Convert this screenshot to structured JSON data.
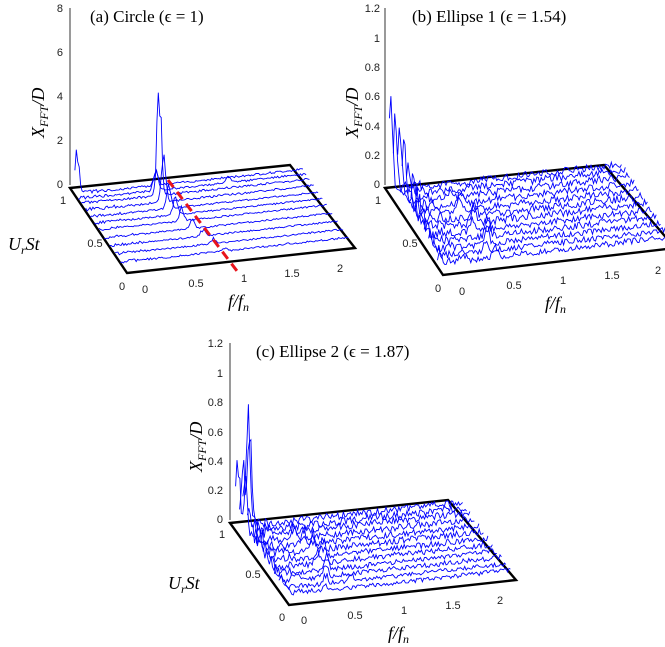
{
  "chart_data": [
    {
      "type": "line",
      "title": "(a) Circle (ϵ = 1)",
      "ylabel": "X_FFT/D",
      "xlabel": "f/f_n",
      "zlabel": "U_rSt",
      "z_ticks": [
        "0",
        "2",
        "4",
        "6",
        "8"
      ],
      "z_lim": [
        0,
        8
      ],
      "x_ticks": [
        "0",
        "0.5",
        "1",
        "1.5",
        "2"
      ],
      "x_lim": [
        0,
        2.2
      ],
      "y_ticks": [
        "0",
        "0.5",
        "1"
      ],
      "y_lim": [
        0,
        1.05
      ],
      "series_color": "#0000ff",
      "annotation_color": "#e8141c",
      "annotation": "dashed line marking f = U_rSt",
      "traces": [
        {
          "y": 0.12,
          "peaks": [
            [
              1.0,
              0.2
            ],
            [
              1.6,
              0.05
            ]
          ],
          "noise": 0.08
        },
        {
          "y": 0.22,
          "peaks": [
            [
              0.95,
              0.25
            ]
          ],
          "noise": 0.08
        },
        {
          "y": 0.32,
          "peaks": [
            [
              0.9,
              0.35
            ]
          ],
          "noise": 0.08
        },
        {
          "y": 0.42,
          "peaks": [
            [
              0.85,
              0.5
            ]
          ],
          "noise": 0.08
        },
        {
          "y": 0.52,
          "peaks": [
            [
              0.8,
              0.7
            ]
          ],
          "noise": 0.08
        },
        {
          "y": 0.6,
          "peaks": [
            [
              0.78,
              1.0
            ]
          ],
          "noise": 0.08
        },
        {
          "y": 0.68,
          "peaks": [
            [
              0.76,
              1.5
            ]
          ],
          "noise": 0.08
        },
        {
          "y": 0.76,
          "peaks": [
            [
              0.75,
              2.5
            ]
          ],
          "noise": 0.1
        },
        {
          "y": 0.84,
          "peaks": [
            [
              0.75,
              5.7
            ]
          ],
          "noise": 0.1
        },
        {
          "y": 0.9,
          "peaks": [
            [
              0.75,
              1.2
            ],
            [
              1.45,
              0.3
            ]
          ],
          "noise": 0.1
        },
        {
          "y": 0.96,
          "peaks": [
            [
              0.02,
              2.2
            ],
            [
              0.78,
              0.8
            ]
          ],
          "noise": 0.1
        }
      ]
    },
    {
      "type": "line",
      "title": "(b) Ellipse 1 (ϵ = 1.54)",
      "ylabel": "X_FFT/D",
      "xlabel": "f/f_n",
      "zlabel": "U_rSt",
      "z_ticks": [
        "0",
        "0.2",
        "0.4",
        "0.6",
        "0.8",
        "1",
        "1.2"
      ],
      "z_lim": [
        0,
        1.2
      ],
      "x_ticks": [
        "0",
        "0.5",
        "1",
        "1.5",
        "2"
      ],
      "x_lim": [
        0,
        2.2
      ],
      "y_ticks": [
        "0.5",
        "1"
      ],
      "y_lim": [
        0,
        1.05
      ],
      "series_color": "#0000ff",
      "traces": [
        {
          "y": 0.1,
          "peaks": [
            [
              0.02,
              0.1
            ],
            [
              0.55,
              0.1
            ]
          ],
          "noise": 0.04
        },
        {
          "y": 0.18,
          "peaks": [
            [
              0.02,
              0.12
            ],
            [
              0.5,
              0.08
            ]
          ],
          "noise": 0.04
        },
        {
          "y": 0.26,
          "peaks": [
            [
              0.02,
              0.15
            ],
            [
              0.55,
              0.12
            ]
          ],
          "noise": 0.04
        },
        {
          "y": 0.34,
          "peaks": [
            [
              0.02,
              0.2
            ],
            [
              0.6,
              0.15
            ]
          ],
          "noise": 0.045
        },
        {
          "y": 0.42,
          "peaks": [
            [
              0.02,
              0.3
            ],
            [
              0.5,
              0.1
            ]
          ],
          "noise": 0.045
        },
        {
          "y": 0.5,
          "peaks": [
            [
              0.02,
              0.35
            ],
            [
              0.55,
              0.12
            ]
          ],
          "noise": 0.05
        },
        {
          "y": 0.58,
          "peaks": [
            [
              0.02,
              0.4
            ],
            [
              0.6,
              0.12
            ]
          ],
          "noise": 0.05
        },
        {
          "y": 0.66,
          "peaks": [
            [
              0.02,
              0.45
            ],
            [
              0.5,
              0.1
            ]
          ],
          "noise": 0.05
        },
        {
          "y": 0.74,
          "peaks": [
            [
              0.02,
              0.5
            ],
            [
              0.55,
              0.1
            ]
          ],
          "noise": 0.05
        },
        {
          "y": 0.82,
          "peaks": [
            [
              0.02,
              0.55
            ],
            [
              0.5,
              0.08
            ]
          ],
          "noise": 0.05
        },
        {
          "y": 0.9,
          "peaks": [
            [
              0.02,
              0.6
            ]
          ],
          "noise": 0.05
        },
        {
          "y": 0.97,
          "peaks": [
            [
              0.01,
              0.72
            ]
          ],
          "noise": 0.05
        }
      ]
    },
    {
      "type": "line",
      "title": "(c) Ellipse 2 (ϵ = 1.87)",
      "ylabel": "X_FFT/D",
      "xlabel": "f/f_n",
      "zlabel": "U_rSt",
      "z_ticks": [
        "0",
        "0.2",
        "0.4",
        "0.6",
        "0.8",
        "1",
        "1.2"
      ],
      "z_lim": [
        0,
        1.2
      ],
      "x_ticks": [
        "0",
        "0.5",
        "1",
        "1.5",
        "2"
      ],
      "x_lim": [
        0,
        2.2
      ],
      "y_ticks": [
        "0",
        "0.5",
        "1"
      ],
      "y_lim": [
        0,
        1.05
      ],
      "series_color": "#0000ff",
      "traces": [
        {
          "y": 0.1,
          "peaks": [
            [
              0.02,
              0.08
            ],
            [
              0.4,
              0.06
            ]
          ],
          "noise": 0.03
        },
        {
          "y": 0.18,
          "peaks": [
            [
              0.02,
              0.1
            ],
            [
              0.45,
              0.08
            ],
            [
              0.7,
              0.06
            ]
          ],
          "noise": 0.03
        },
        {
          "y": 0.26,
          "peaks": [
            [
              0.02,
              0.12
            ],
            [
              0.5,
              0.1
            ]
          ],
          "noise": 0.035
        },
        {
          "y": 0.34,
          "peaks": [
            [
              0.02,
              0.15
            ],
            [
              0.55,
              0.12
            ]
          ],
          "noise": 0.035
        },
        {
          "y": 0.42,
          "peaks": [
            [
              0.02,
              0.18
            ],
            [
              0.5,
              0.12
            ]
          ],
          "noise": 0.04
        },
        {
          "y": 0.5,
          "peaks": [
            [
              0.02,
              0.22
            ],
            [
              0.6,
              0.15
            ]
          ],
          "noise": 0.04
        },
        {
          "y": 0.58,
          "peaks": [
            [
              0.02,
              0.25
            ],
            [
              0.55,
              0.15
            ]
          ],
          "noise": 0.045
        },
        {
          "y": 0.66,
          "peaks": [
            [
              0.02,
              0.3
            ],
            [
              0.5,
              0.12
            ]
          ],
          "noise": 0.045
        },
        {
          "y": 0.74,
          "peaks": [
            [
              0.02,
              0.35
            ],
            [
              0.45,
              0.1
            ]
          ],
          "noise": 0.045
        },
        {
          "y": 0.82,
          "peaks": [
            [
              0.02,
              0.5
            ]
          ],
          "noise": 0.05
        },
        {
          "y": 0.88,
          "peaks": [
            [
              0.03,
              0.55
            ],
            [
              0.1,
              0.75
            ]
          ],
          "noise": 0.05
        },
        {
          "y": 0.95,
          "peaks": [
            [
              0.02,
              0.6
            ],
            [
              0.12,
              0.85
            ]
          ],
          "noise": 0.05
        }
      ]
    }
  ]
}
